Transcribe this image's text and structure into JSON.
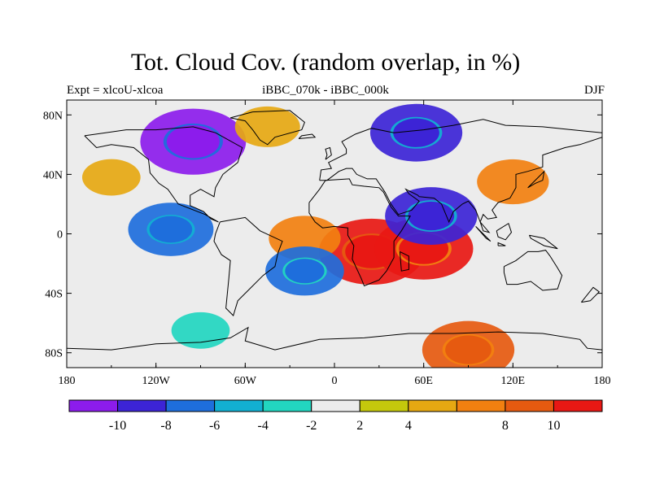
{
  "title": "Tot. Cloud Cov. (random overlap, in %)",
  "left_label": "Expt = xlcoU-xlcoa",
  "center_label": "iBBC_070k - iBBC_000k",
  "right_label": "DJF",
  "chart_data": {
    "type": "heatmap",
    "projection": "cylindrical-equidistant",
    "xlim": [
      -180,
      180
    ],
    "ylim": [
      -90,
      90
    ],
    "x_ticks": [
      {
        "value": -180,
        "label": "180"
      },
      {
        "value": -120,
        "label": "120W"
      },
      {
        "value": -60,
        "label": "60W"
      },
      {
        "value": 0,
        "label": "0"
      },
      {
        "value": 60,
        "label": "60E"
      },
      {
        "value": 120,
        "label": "120E"
      },
      {
        "value": 180,
        "label": "180"
      }
    ],
    "y_ticks": [
      {
        "value": 80,
        "label": "80N"
      },
      {
        "value": 40,
        "label": "40N"
      },
      {
        "value": 0,
        "label": "0"
      },
      {
        "value": -40,
        "label": "40S"
      },
      {
        "value": -80,
        "label": "80S"
      }
    ],
    "colorbar": {
      "orientation": "horizontal",
      "levels": [
        -12,
        -10,
        -8,
        -6,
        -4,
        -2,
        2,
        4,
        6,
        8,
        10,
        12
      ],
      "tick_labels": [
        {
          "value": -10,
          "label": "-10"
        },
        {
          "value": -8,
          "label": "-8"
        },
        {
          "value": -6,
          "label": "-6"
        },
        {
          "value": -4,
          "label": "-4"
        },
        {
          "value": -2,
          "label": "-2"
        },
        {
          "value": 2,
          "label": "2"
        },
        {
          "value": 4,
          "label": "4"
        },
        {
          "value": 8,
          "label": "8"
        },
        {
          "value": 10,
          "label": "10"
        }
      ],
      "colors": [
        "#8c1cec",
        "#3c24d6",
        "#1e6edc",
        "#12b0d2",
        "#22d6c0",
        "#ececec",
        "#c4c80c",
        "#e6a812",
        "#f28010",
        "#e65a10",
        "#e81814"
      ]
    },
    "anomalies": [
      {
        "region": "Canada / Hudson Bay",
        "lon": -95,
        "lat": 62,
        "value": -11
      },
      {
        "region": "Greenland",
        "lon": -45,
        "lat": 72,
        "value": 5
      },
      {
        "region": "Western Siberia",
        "lon": 55,
        "lat": 68,
        "value": -9
      },
      {
        "region": "Southern Africa",
        "lon": 25,
        "lat": -12,
        "value": 11
      },
      {
        "region": "Tropical Indian Ocean",
        "lon": 60,
        "lat": -10,
        "value": 10
      },
      {
        "region": "Arabian Sea",
        "lon": 65,
        "lat": 12,
        "value": -9
      },
      {
        "region": "East Asia",
        "lon": 120,
        "lat": 35,
        "value": 6
      },
      {
        "region": "Eastern tropical Pacific",
        "lon": -110,
        "lat": 3,
        "value": -8
      },
      {
        "region": "North Pacific",
        "lon": -150,
        "lat": 38,
        "value": 4
      },
      {
        "region": "Tropical Atlantic",
        "lon": -20,
        "lat": -3,
        "value": 6
      },
      {
        "region": "South Atlantic",
        "lon": -20,
        "lat": -25,
        "value": -7
      },
      {
        "region": "Southern Ocean",
        "lon": -90,
        "lat": -65,
        "value": -4
      },
      {
        "region": "Antarctic coast",
        "lon": 90,
        "lat": -78,
        "value": 9
      }
    ]
  }
}
